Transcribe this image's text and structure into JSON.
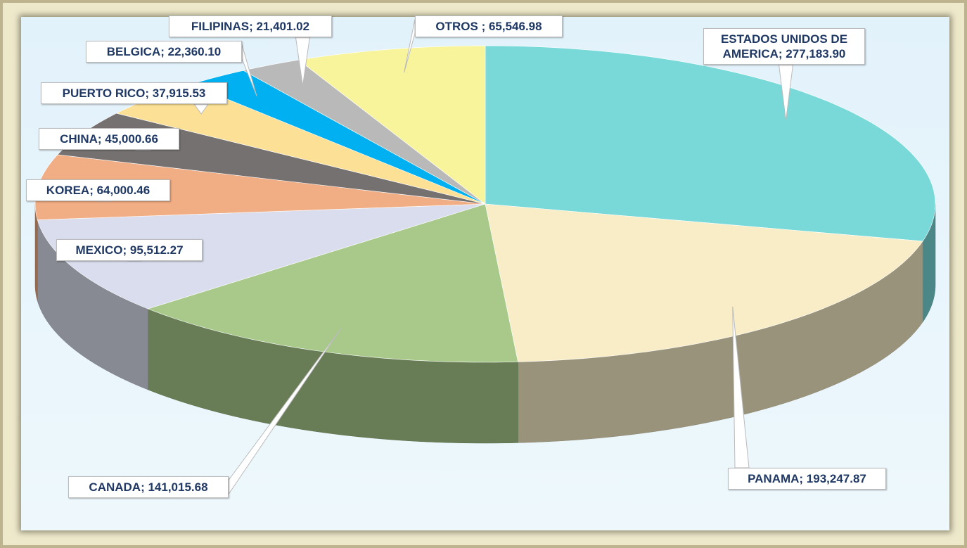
{
  "chart_data": {
    "type": "pie",
    "values": [
      277183.9,
      193247.87,
      141015.68,
      95512.27,
      64000.46,
      45000.66,
      37915.53,
      22360.1,
      21401.02,
      65546.98
    ],
    "value_labels": [
      "ESTADOS UNIDOS DE AMERICA; 277,183.90",
      "PANAMA; 193,247.87",
      "CANADA; 141,015.68",
      "MEXICO; 95,512.27",
      "KOREA; 64,000.46",
      "CHINA; 45,000.66",
      "PUERTO RICO; 37,915.53",
      "BELGICA; 22,360.10",
      "FILIPINAS; 21,401.02",
      "OTROS ; 65,546.98"
    ],
    "colors": [
      "#79d9d8",
      "#f9edc7",
      "#a8c98a",
      "#d9dded",
      "#f1ad83",
      "#767171",
      "#fbe096",
      "#00b0f0",
      "#b9b9b9",
      "#f8f49b"
    ]
  }
}
